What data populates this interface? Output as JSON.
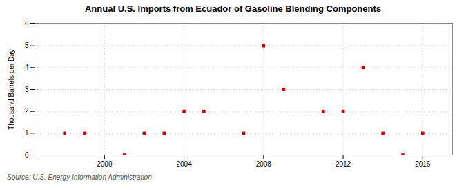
{
  "chart_data": {
    "type": "scatter",
    "title": "Annual U.S. Imports from Ecuador of Gasoline Blending Components",
    "ylabel": "Thousand Barrels per Day",
    "caption": "Source: U.S. Energy Information Administration",
    "x": [
      1998,
      1999,
      2001,
      2002,
      2003,
      2004,
      2005,
      2007,
      2008,
      2009,
      2011,
      2012,
      2013,
      2014,
      2015,
      2016
    ],
    "values": [
      1,
      1,
      0,
      1,
      1,
      2,
      2,
      1,
      5,
      3,
      2,
      2,
      4,
      1,
      0,
      1
    ],
    "color": "#cc0000",
    "marker": "square",
    "xlim": [
      1996.5,
      2017.5
    ],
    "ylim": [
      0,
      6
    ],
    "xticks": [
      2000,
      2004,
      2008,
      2012,
      2016
    ],
    "yticks": [
      0,
      1,
      2,
      3,
      4,
      5,
      6
    ],
    "grid": true
  }
}
